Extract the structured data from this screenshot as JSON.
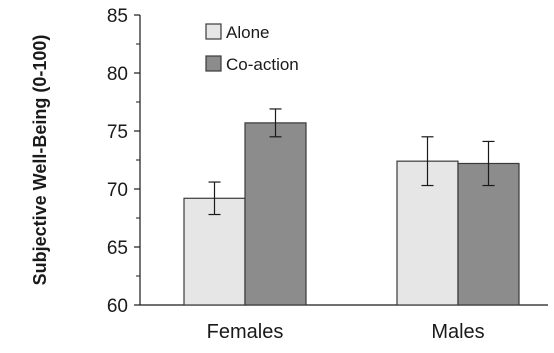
{
  "chart_data": {
    "type": "bar",
    "title": "",
    "xlabel": "",
    "ylabel": "Subjective Well-Being (0-100)",
    "ylim": [
      60,
      85
    ],
    "yticks": [
      60,
      65,
      70,
      75,
      80,
      85
    ],
    "categories": [
      "Females",
      "Males"
    ],
    "series": [
      {
        "name": "Alone",
        "values": [
          69.2,
          72.4
        ],
        "error": [
          1.4,
          2.1
        ],
        "color": "#e6e6e6"
      },
      {
        "name": "Co-action",
        "values": [
          75.7,
          72.2
        ],
        "error": [
          1.2,
          1.9
        ],
        "color": "#8c8c8c"
      }
    ],
    "error_bars": true,
    "grid": false,
    "legend_position": "top-left"
  }
}
